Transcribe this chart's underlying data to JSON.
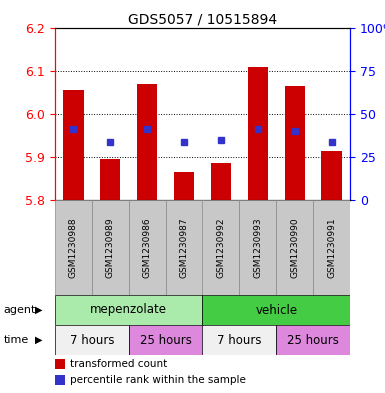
{
  "title": "GDS5057 / 10515894",
  "samples": [
    "GSM1230988",
    "GSM1230989",
    "GSM1230986",
    "GSM1230987",
    "GSM1230992",
    "GSM1230993",
    "GSM1230990",
    "GSM1230991"
  ],
  "bar_bottoms": [
    5.8,
    5.8,
    5.8,
    5.8,
    5.8,
    5.8,
    5.8,
    5.8
  ],
  "bar_tops": [
    6.055,
    5.895,
    6.07,
    5.865,
    5.885,
    6.11,
    6.065,
    5.915
  ],
  "percentile_values": [
    5.965,
    5.935,
    5.965,
    5.935,
    5.94,
    5.965,
    5.96,
    5.935
  ],
  "ylim": [
    5.8,
    6.2
  ],
  "yticks_left": [
    5.8,
    5.9,
    6.0,
    6.1,
    6.2
  ],
  "yticks_right_labels": [
    "0",
    "25",
    "50",
    "75",
    "100%"
  ],
  "bar_color": "#cc0000",
  "percentile_color": "#3333cc",
  "background_label": "#c8c8c8",
  "agent_mepenzolate_color": "#aaeaaa",
  "agent_vehicle_color": "#44cc44",
  "time_7h_color": "#f0f0f0",
  "time_25h_color": "#dd88dd",
  "agent_label": "agent",
  "time_label": "time",
  "agent_groups": [
    {
      "label": "mepenzolate",
      "start": 0,
      "end": 3
    },
    {
      "label": "vehicle",
      "start": 4,
      "end": 7
    }
  ],
  "time_groups": [
    {
      "label": "7 hours",
      "start": 0,
      "end": 1,
      "color": "#f0f0f0"
    },
    {
      "label": "25 hours",
      "start": 2,
      "end": 3,
      "color": "#dd88dd"
    },
    {
      "label": "7 hours",
      "start": 4,
      "end": 5,
      "color": "#f0f0f0"
    },
    {
      "label": "25 hours",
      "start": 6,
      "end": 7,
      "color": "#dd88dd"
    }
  ],
  "legend_items": [
    {
      "color": "#cc0000",
      "label": "transformed count"
    },
    {
      "color": "#3333cc",
      "label": "percentile rank within the sample"
    }
  ],
  "figsize": [
    3.85,
    3.93
  ],
  "dpi": 100
}
